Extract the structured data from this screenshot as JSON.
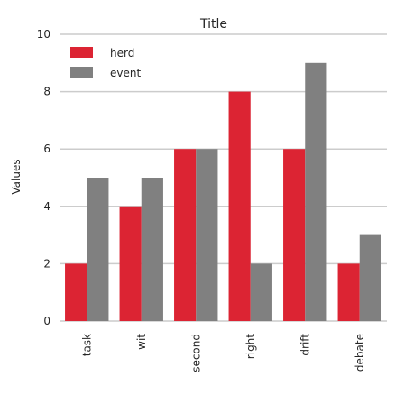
{
  "chart_data": {
    "type": "bar",
    "title": "Title",
    "xlabel": "",
    "ylabel": "Values",
    "categories": [
      "task",
      "wit",
      "second",
      "right",
      "drift",
      "debate"
    ],
    "series": [
      {
        "name": "herd",
        "values": [
          2,
          4,
          6,
          8,
          6,
          2
        ],
        "color": "#dc2433"
      },
      {
        "name": "event",
        "values": [
          5,
          5,
          6,
          2,
          9,
          3
        ],
        "color": "#808080"
      }
    ],
    "ylim": [
      0,
      10
    ],
    "yticks": [
      0,
      2,
      4,
      6,
      8,
      10
    ],
    "grid": true,
    "legend_position": "top-left"
  }
}
